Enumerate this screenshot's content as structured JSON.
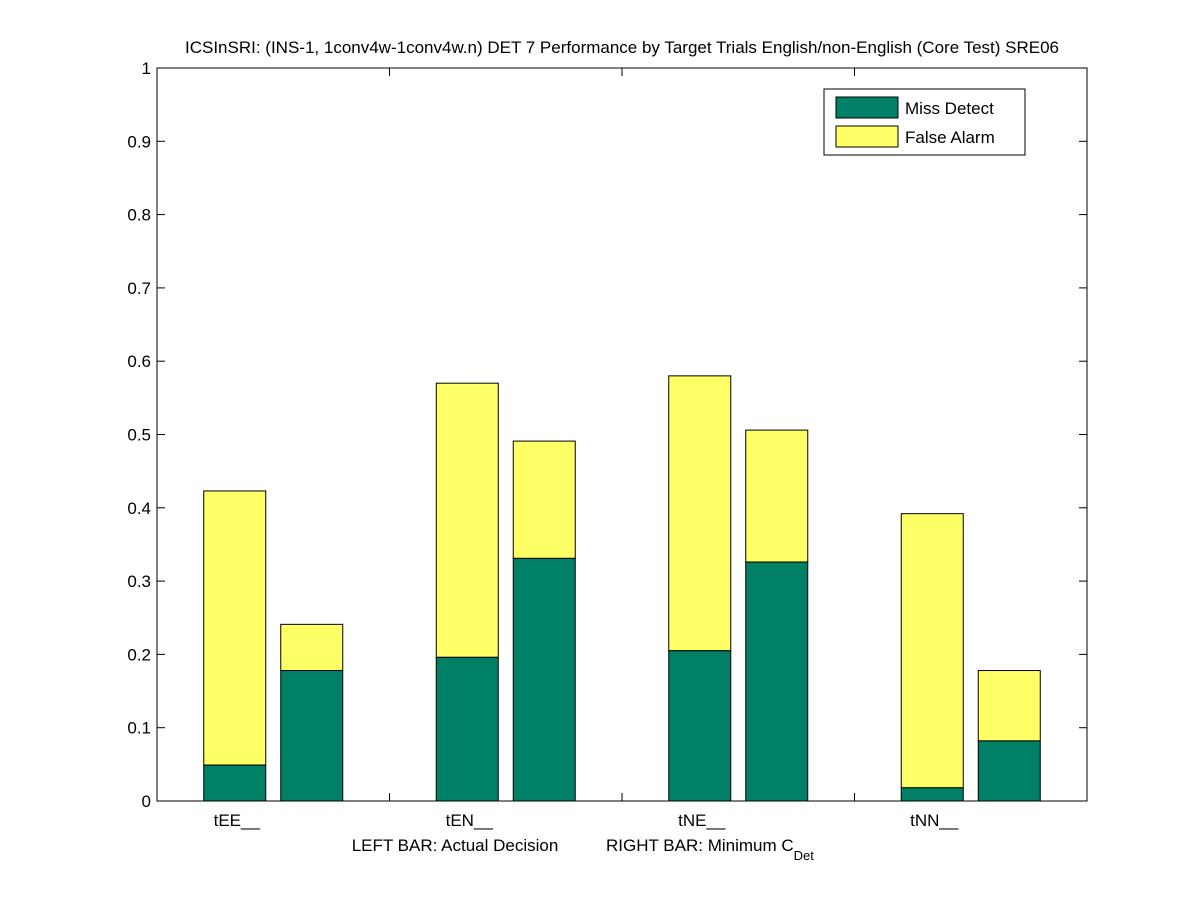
{
  "chart_data": {
    "type": "bar",
    "stacked": true,
    "title": "ICSInSRI: (INS-1, 1conv4w-1conv4w.n) DET 7 Performance by Target Trials English/non-English (Core Test) SRE06",
    "xlabel_left": "LEFT BAR: Actual Decision",
    "xlabel_right": "RIGHT BAR: Minimum C",
    "xlabel_right_sub": "Det",
    "categories": [
      "tEE__",
      "tEN__",
      "tNE__",
      "tNN__"
    ],
    "ylim": [
      0,
      1
    ],
    "yticks": [
      0,
      0.1,
      0.2,
      0.3,
      0.4,
      0.5,
      0.6,
      0.7,
      0.8,
      0.9,
      1
    ],
    "ytick_labels": [
      "0",
      "0.1",
      "0.2",
      "0.3",
      "0.4",
      "0.5",
      "0.6",
      "0.7",
      "0.8",
      "0.9",
      "1"
    ],
    "grid": false,
    "legend_position": "top-right",
    "legend": [
      "Miss Detect",
      "False Alarm"
    ],
    "colors": {
      "miss": "#008066",
      "false_alarm": "#ffff66",
      "edge": "#000000"
    },
    "bars": [
      {
        "category": "tEE__",
        "actual": {
          "miss": 0.049,
          "false_alarm": 0.374
        },
        "minimum": {
          "miss": 0.178,
          "false_alarm": 0.063
        }
      },
      {
        "category": "tEN__",
        "actual": {
          "miss": 0.196,
          "false_alarm": 0.374
        },
        "minimum": {
          "miss": 0.331,
          "false_alarm": 0.16
        }
      },
      {
        "category": "tNE__",
        "actual": {
          "miss": 0.205,
          "false_alarm": 0.375
        },
        "minimum": {
          "miss": 0.326,
          "false_alarm": 0.18
        }
      },
      {
        "category": "tNN__",
        "actual": {
          "miss": 0.018,
          "false_alarm": 0.374
        },
        "minimum": {
          "miss": 0.082,
          "false_alarm": 0.096
        }
      }
    ]
  }
}
